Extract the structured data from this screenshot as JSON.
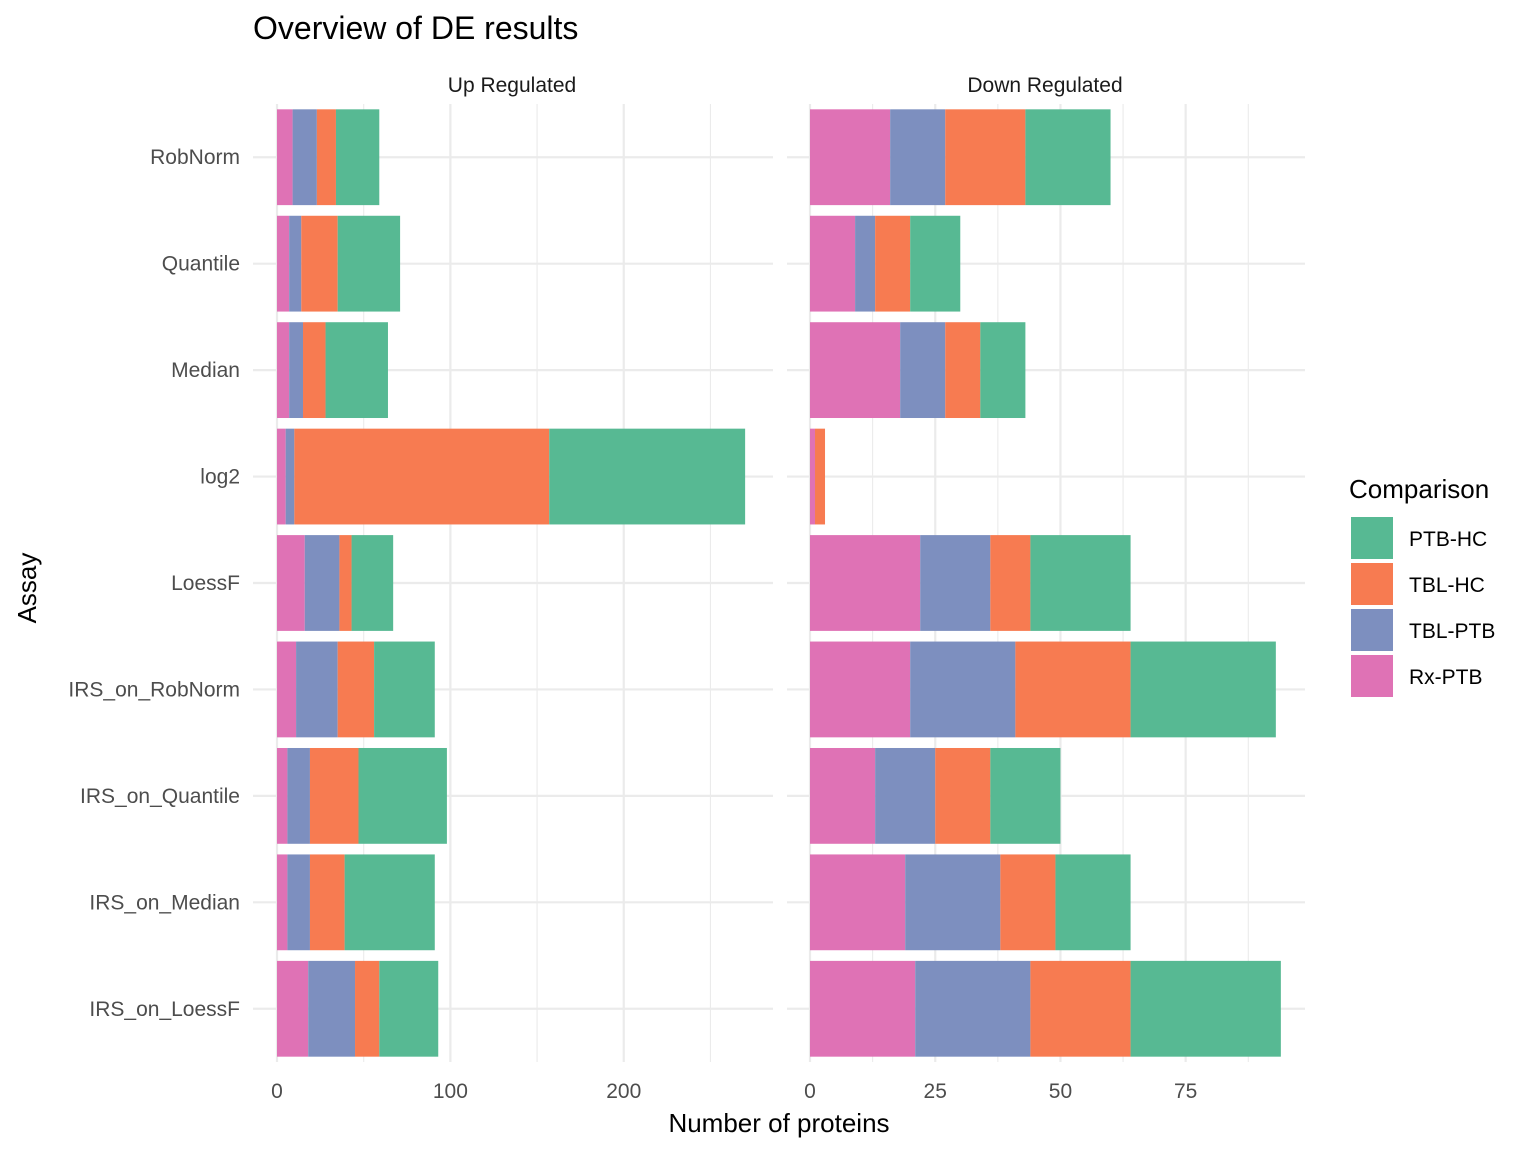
{
  "chart_data": {
    "type": "bar",
    "orientation": "horizontal",
    "stacked": true,
    "title": "Overview of DE results",
    "xlabel": "Number of proteins",
    "ylabel": "Assay",
    "categories": [
      "RobNorm",
      "Quantile",
      "Median",
      "log2",
      "LoessF",
      "IRS_on_RobNorm",
      "IRS_on_Quantile",
      "IRS_on_Median",
      "IRS_on_LoessF"
    ],
    "facets": [
      {
        "name": "Up Regulated",
        "xlim": [
          0,
          285
        ],
        "xticks": [
          0,
          100,
          200
        ],
        "series": [
          {
            "name": "Rx-PTB",
            "values": [
              9,
              7,
              7,
              5,
              16,
              11,
              6,
              6,
              18
            ]
          },
          {
            "name": "TBL-PTB",
            "values": [
              14,
              7,
              8,
              5,
              20,
              24,
              13,
              13,
              27
            ]
          },
          {
            "name": "TBL-HC",
            "values": [
              11,
              21,
              13,
              147,
              7,
              21,
              28,
              20,
              14
            ]
          },
          {
            "name": "PTB-HC",
            "values": [
              25,
              36,
              36,
              113,
              24,
              35,
              51,
              52,
              34
            ]
          }
        ]
      },
      {
        "name": "Down Regulated",
        "xlim": [
          0,
          98
        ],
        "xticks": [
          0,
          25,
          50,
          75
        ],
        "series": [
          {
            "name": "Rx-PTB",
            "values": [
              16,
              9,
              18,
              1,
              22,
              20,
              13,
              19,
              21
            ]
          },
          {
            "name": "TBL-PTB",
            "values": [
              11,
              4,
              9,
              0,
              14,
              21,
              12,
              19,
              23
            ]
          },
          {
            "name": "TBL-HC",
            "values": [
              16,
              7,
              7,
              2,
              8,
              23,
              11,
              11,
              20
            ]
          },
          {
            "name": "PTB-HC",
            "values": [
              17,
              10,
              9,
              0,
              20,
              29,
              14,
              15,
              30
            ]
          }
        ]
      }
    ],
    "legend": {
      "title": "Comparison",
      "position": "right",
      "entries": [
        "PTB-HC",
        "TBL-HC",
        "TBL-PTB",
        "Rx-PTB"
      ]
    },
    "colors": {
      "PTB-HC": "#57b993",
      "TBL-HC": "#f77b51",
      "TBL-PTB": "#7d8fbf",
      "Rx-PTB": "#df72b5"
    },
    "grid": true
  }
}
